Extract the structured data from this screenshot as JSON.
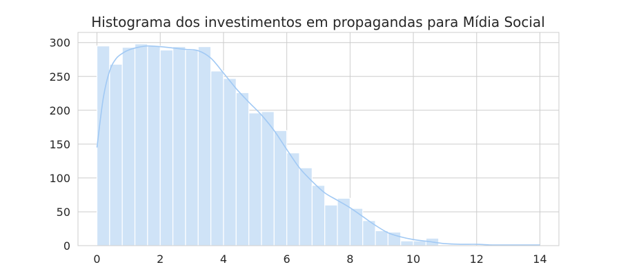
{
  "chart_data": {
    "type": "bar",
    "title": "Histograma dos investimentos em propagandas para Mídia Social",
    "xlabel": "",
    "ylabel": "",
    "xlim": [
      -0.6,
      14.6
    ],
    "ylim": [
      0,
      315
    ],
    "x_ticks": [
      0,
      2,
      4,
      6,
      8,
      10,
      12,
      14
    ],
    "y_ticks": [
      0,
      50,
      100,
      150,
      200,
      250,
      300
    ],
    "grid": true,
    "bar_color": "#cfe3f7",
    "kde_color": "#a1c9f4",
    "bins": [
      {
        "x0": 0.0,
        "x1": 0.4,
        "count": 295
      },
      {
        "x0": 0.4,
        "x1": 0.8,
        "count": 268
      },
      {
        "x0": 0.8,
        "x1": 1.2,
        "count": 293
      },
      {
        "x0": 1.2,
        "x1": 1.6,
        "count": 298
      },
      {
        "x0": 1.6,
        "x1": 2.0,
        "count": 295
      },
      {
        "x0": 2.0,
        "x1": 2.4,
        "count": 289
      },
      {
        "x0": 2.4,
        "x1": 2.8,
        "count": 294
      },
      {
        "x0": 2.8,
        "x1": 3.2,
        "count": 289
      },
      {
        "x0": 3.2,
        "x1": 3.6,
        "count": 294
      },
      {
        "x0": 3.6,
        "x1": 4.0,
        "count": 258
      },
      {
        "x0": 4.0,
        "x1": 4.4,
        "count": 247
      },
      {
        "x0": 4.4,
        "x1": 4.8,
        "count": 226
      },
      {
        "x0": 4.8,
        "x1": 5.2,
        "count": 196
      },
      {
        "x0": 5.2,
        "x1": 5.6,
        "count": 198
      },
      {
        "x0": 5.6,
        "x1": 6.0,
        "count": 170
      },
      {
        "x0": 6.0,
        "x1": 6.4,
        "count": 137
      },
      {
        "x0": 6.4,
        "x1": 6.8,
        "count": 115
      },
      {
        "x0": 6.8,
        "x1": 7.2,
        "count": 89
      },
      {
        "x0": 7.2,
        "x1": 7.6,
        "count": 60
      },
      {
        "x0": 7.6,
        "x1": 8.0,
        "count": 70
      },
      {
        "x0": 8.0,
        "x1": 8.4,
        "count": 55
      },
      {
        "x0": 8.4,
        "x1": 8.8,
        "count": 37
      },
      {
        "x0": 8.8,
        "x1": 9.2,
        "count": 22
      },
      {
        "x0": 9.2,
        "x1": 9.6,
        "count": 20
      },
      {
        "x0": 9.6,
        "x1": 10.0,
        "count": 7
      },
      {
        "x0": 10.0,
        "x1": 10.4,
        "count": 7
      },
      {
        "x0": 10.4,
        "x1": 10.8,
        "count": 11
      }
    ],
    "kde": {
      "x": [
        0,
        0.2,
        0.4,
        0.6,
        0.8,
        1.0,
        1.3,
        1.6,
        2.0,
        2.4,
        2.8,
        3.2,
        3.6,
        4.0,
        4.4,
        4.8,
        5.2,
        5.6,
        6.0,
        6.4,
        6.8,
        7.2,
        7.6,
        8.0,
        8.4,
        8.8,
        9.2,
        9.6,
        10.0,
        10.5,
        11.0,
        11.5,
        12.0,
        12.5,
        13.0,
        13.5,
        14.0
      ],
      "y": [
        145,
        218,
        258,
        276,
        284,
        289,
        293,
        295,
        294,
        292,
        290,
        288,
        277,
        255,
        232,
        212,
        193,
        170,
        142,
        115,
        95,
        78,
        67,
        56,
        43,
        30,
        19,
        13,
        9,
        6,
        3,
        2,
        2,
        1,
        1,
        1,
        1
      ]
    }
  }
}
